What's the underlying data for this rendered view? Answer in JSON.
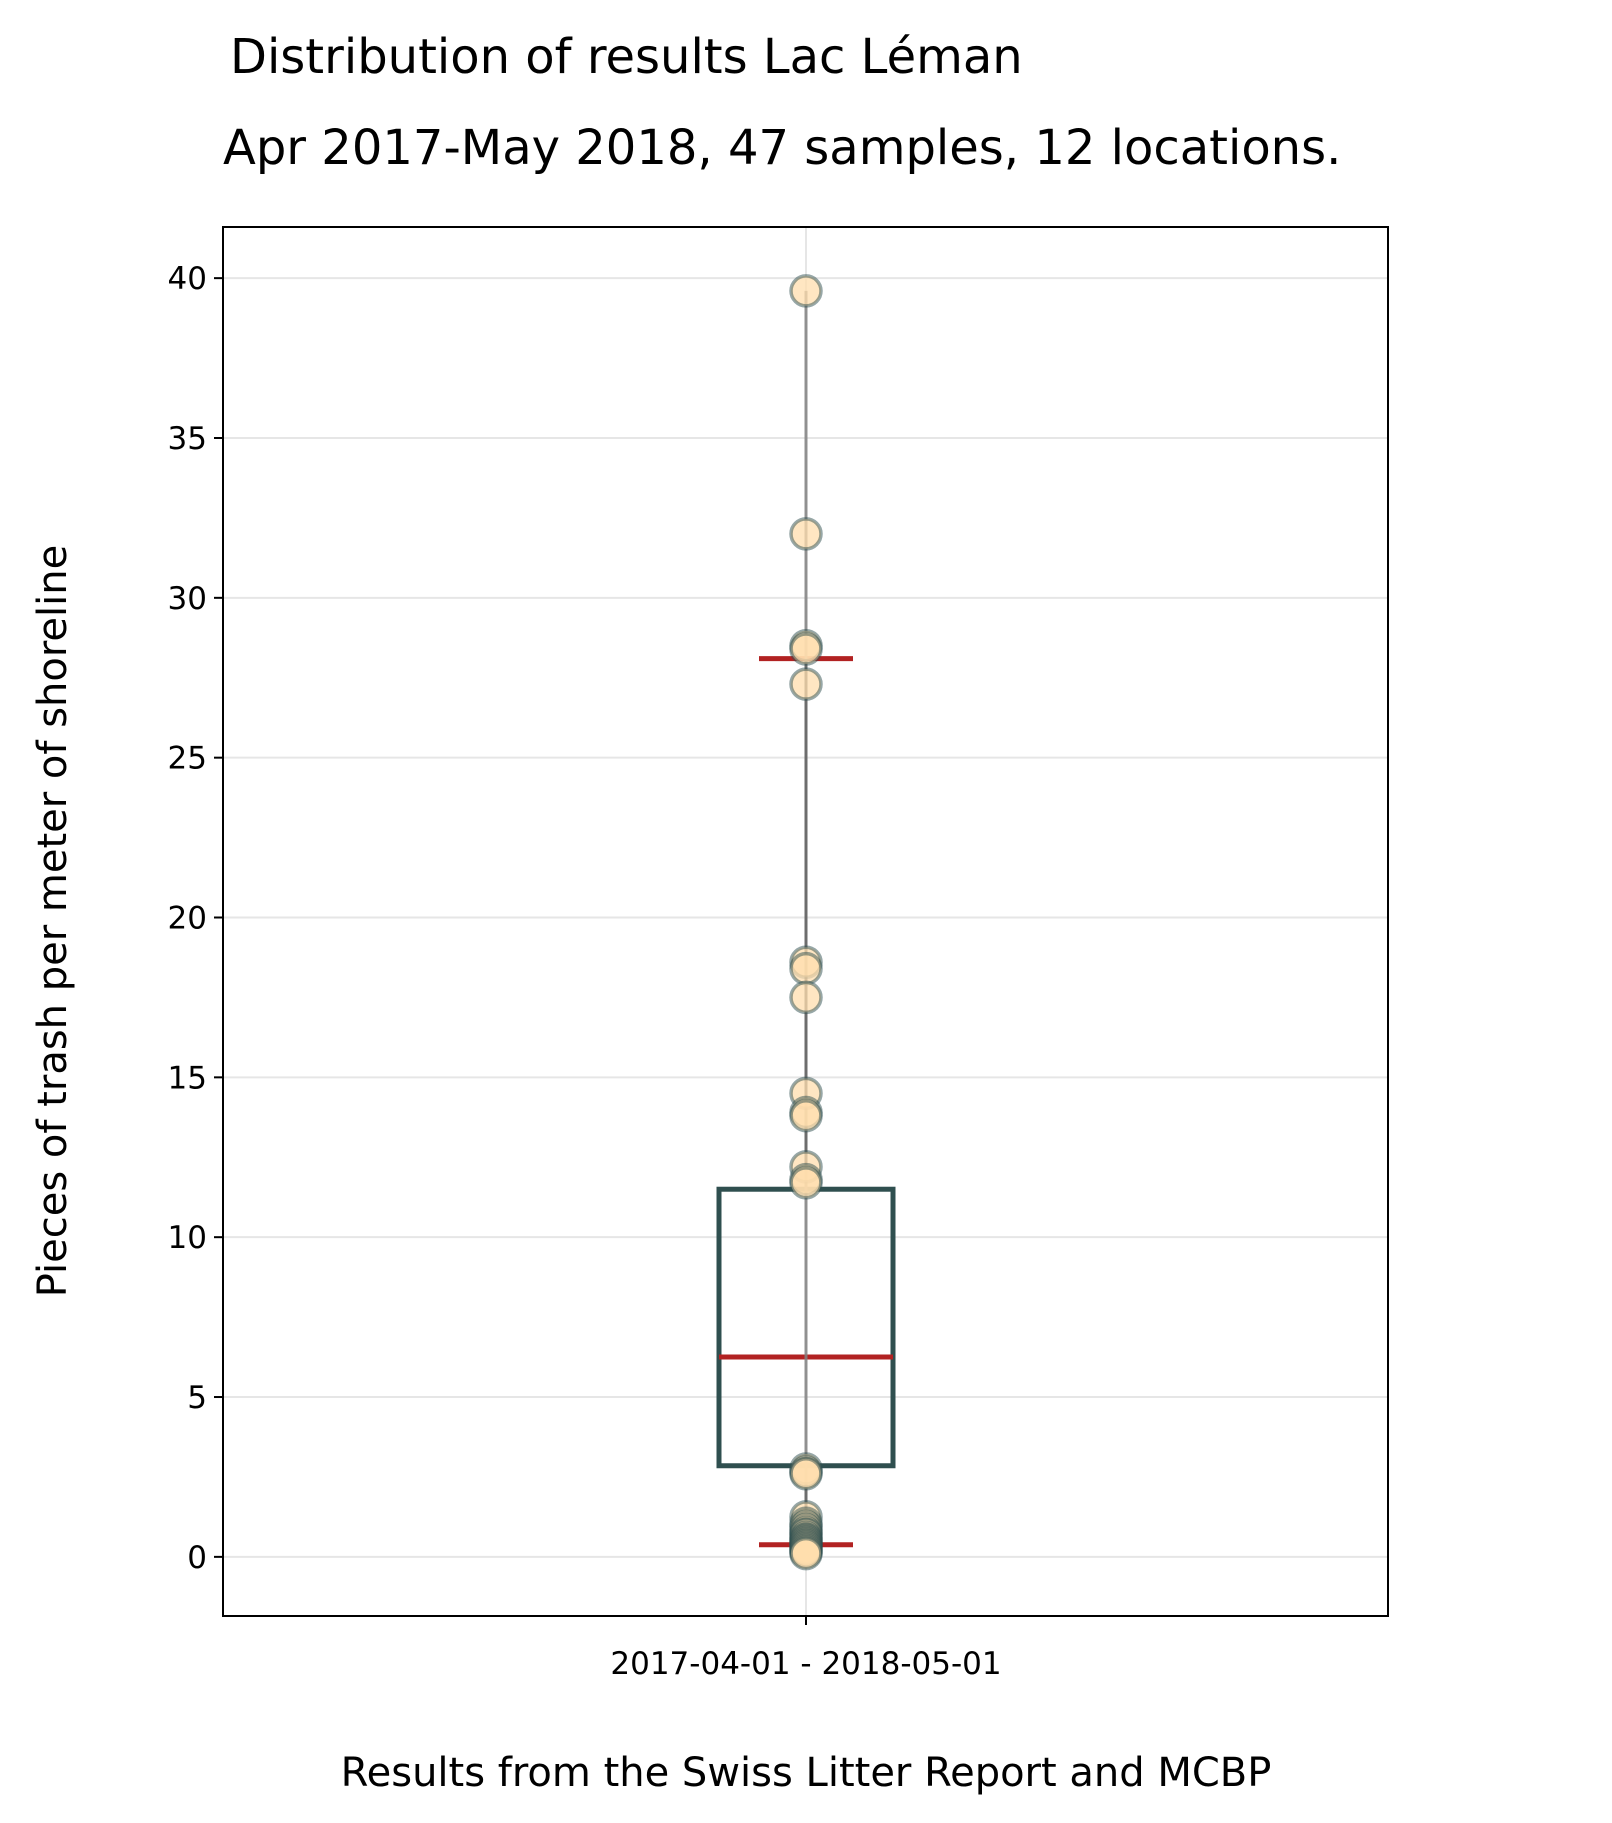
{
  "chart_data": {
    "type": "box",
    "title": "Distribution of results Lac Léman",
    "subtitle": "Apr 2017-May 2018, 47 samples, 12 locations.",
    "xlabel": "Results from the Swiss Litter Report and MCBP",
    "ylabel": "Pieces of trash per meter of shoreline",
    "categories": [
      "2017-04-01 - 2018-05-01"
    ],
    "ylim": [
      -1.85,
      41.6
    ],
    "yticks": [
      0,
      5,
      10,
      15,
      20,
      25,
      30,
      35,
      40
    ],
    "grid": "horizontal",
    "box": {
      "q1": 2.85,
      "median": 6.25,
      "q3": 11.5,
      "whisker_low": 0.38,
      "whisker_high": 28.1
    },
    "points": [
      39.6,
      32.0,
      28.5,
      28.4,
      27.3,
      18.6,
      18.4,
      17.5,
      14.5,
      13.9,
      13.8,
      12.2,
      11.8,
      11.7,
      2.75,
      2.65,
      2.6,
      1.25,
      1.05,
      0.95,
      0.85,
      0.75,
      0.7,
      0.6,
      0.55,
      0.5,
      0.45,
      0.4,
      0.35,
      0.3,
      0.25,
      0.2,
      0.15,
      0.1
    ],
    "colors": {
      "box_edge": "#2f4f4f",
      "median": "#b22222",
      "whisker_cap": "#b22222",
      "whisker": "#000000",
      "point_fill": "#ffdead",
      "point_edge": "#2f4f4f",
      "grid": "#e6e6e6"
    }
  }
}
